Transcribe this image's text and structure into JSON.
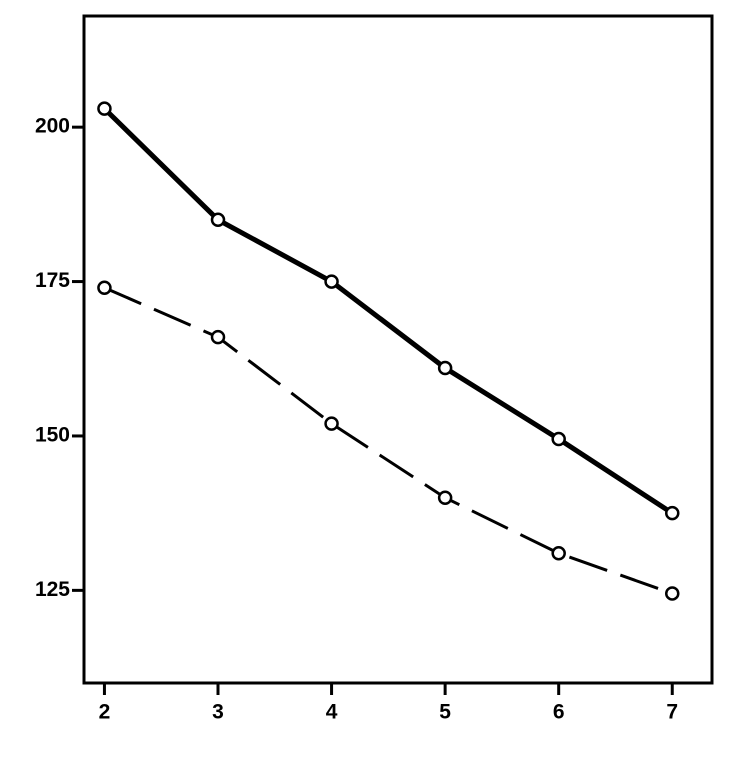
{
  "chart_data": {
    "type": "line",
    "x": [
      2,
      3,
      4,
      5,
      6,
      7
    ],
    "series": [
      {
        "color": "#000000",
        "dashed": false,
        "values": [
          203,
          185,
          175,
          161,
          149.5,
          137.5
        ]
      },
      {
        "color": "#000000",
        "dashed": true,
        "values": [
          174,
          166,
          152,
          140,
          131,
          124.5
        ]
      }
    ],
    "xlim": [
      1.82,
      7.35
    ],
    "xticks": [
      2,
      3,
      4,
      5,
      6,
      7
    ],
    "ylim": [
      110,
      218
    ],
    "yticks": [
      125,
      150,
      175,
      200
    ],
    "grid": false
  }
}
